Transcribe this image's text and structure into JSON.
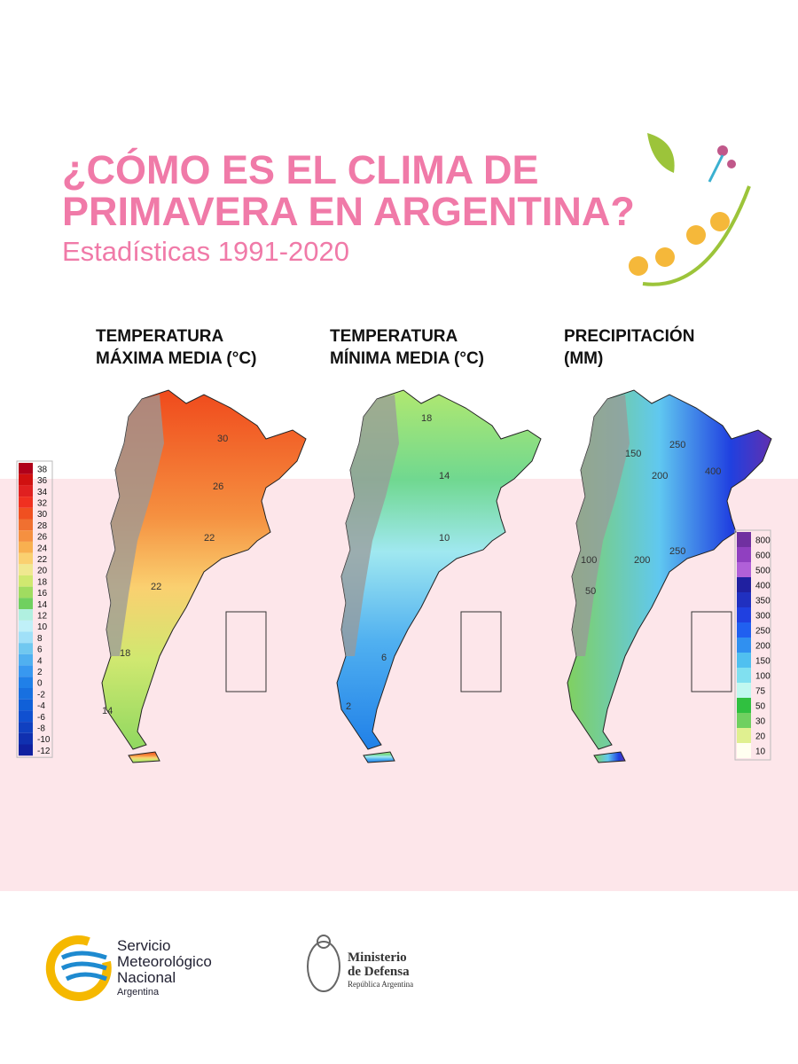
{
  "header": {
    "title_lines": [
      "¿CÓMO ES EL CLIMA DE",
      "PRIMAVERA EN ARGENTINA?"
    ],
    "subtitle": "Estadísticas 1991-2020"
  },
  "panels": [
    {
      "title_lines": [
        "TEMPERATURA",
        "MÁXIMA MEDIA (°C)"
      ],
      "contour_labels": [
        30,
        26,
        22,
        22,
        18,
        14
      ]
    },
    {
      "title_lines": [
        "TEMPERATURA",
        "MÍNIMA MEDIA (°C)"
      ],
      "contour_labels": [
        18,
        14,
        10,
        6,
        2
      ]
    },
    {
      "title_lines": [
        "PRECIPITACIÓN",
        "(MM)"
      ],
      "contour_labels": [
        150,
        250,
        200,
        400,
        100,
        250,
        200,
        50
      ]
    }
  ],
  "legends": {
    "temperature": {
      "labels": [
        38,
        36,
        34,
        32,
        30,
        28,
        26,
        24,
        22,
        20,
        18,
        16,
        14,
        12,
        10,
        8,
        6,
        4,
        2,
        0,
        -2,
        -4,
        -6,
        -8,
        -10,
        -12
      ],
      "colors": [
        "#b0001a",
        "#d01010",
        "#e02020",
        "#f03020",
        "#f05020",
        "#f07030",
        "#f59040",
        "#f8b050",
        "#fad070",
        "#f0e890",
        "#d0e870",
        "#a0dc60",
        "#70d060",
        "#b0f0e0",
        "#c0f0f8",
        "#a0e0f8",
        "#70c8f0",
        "#50b0f0",
        "#3898f0",
        "#2080e8",
        "#1870e0",
        "#1060d8",
        "#1050d0",
        "#1040c0",
        "#1030b0",
        "#1020a0"
      ]
    },
    "precipitation": {
      "labels": [
        800,
        600,
        500,
        400,
        350,
        300,
        250,
        200,
        150,
        100,
        75,
        50,
        30,
        20,
        10
      ],
      "colors": [
        "#7030a0",
        "#9040c0",
        "#b060d8",
        "#2020a0",
        "#2030c0",
        "#2040e0",
        "#2060f0",
        "#3090f0",
        "#50c0f0",
        "#80e0f0",
        "#c0f8f0",
        "#30c040",
        "#70d060",
        "#e0f090",
        "#fffff0"
      ]
    }
  },
  "footer": {
    "smn": [
      "Servicio",
      "Meteorológico",
      "Nacional",
      "Argentina"
    ],
    "ministry": [
      "Ministerio",
      "de Defensa",
      "República Argentina"
    ]
  }
}
